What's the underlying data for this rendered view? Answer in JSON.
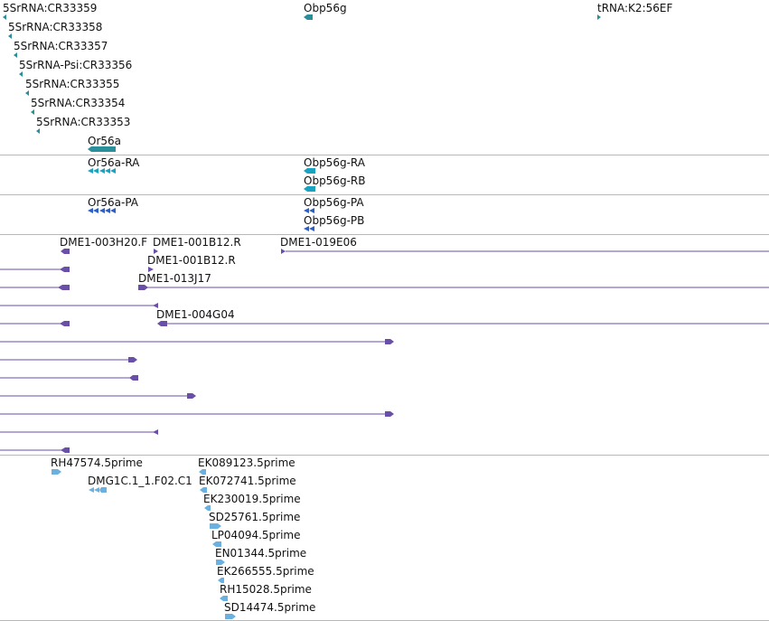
{
  "colors": {
    "gene": "#2a8f9a",
    "transcript_ra": "#1aa3c0",
    "protein": "#2a5fc8",
    "clone": "#6a4fa8",
    "est": "#6ab0e0",
    "divider": "#b8b8b8"
  },
  "tracks": {
    "gene": {
      "features": [
        {
          "label": "5SrRNA:CR33359",
          "strand": "-"
        },
        {
          "label": "5SrRNA:CR33358",
          "strand": "-"
        },
        {
          "label": "5SrRNA:CR33357",
          "strand": "-"
        },
        {
          "label": "5SrRNA-Psi:CR33356",
          "strand": "-"
        },
        {
          "label": "5SrRNA:CR33355",
          "strand": "-"
        },
        {
          "label": "5SrRNA:CR33354",
          "strand": "-"
        },
        {
          "label": "5SrRNA:CR33353",
          "strand": "-"
        },
        {
          "label": "Or56a",
          "strand": "-"
        },
        {
          "label": "Obp56g",
          "strand": "-"
        },
        {
          "label": "tRNA:K2:56EF",
          "strand": "+"
        }
      ]
    },
    "transcripts": {
      "features": [
        {
          "label": "Or56a-RA"
        },
        {
          "label": "Obp56g-RA"
        },
        {
          "label": "Obp56g-RB"
        }
      ]
    },
    "proteins": {
      "features": [
        {
          "label": "Or56a-PA"
        },
        {
          "label": "Obp56g-PA"
        },
        {
          "label": "Obp56g-PB"
        }
      ]
    },
    "clones": {
      "features": [
        {
          "label": "DME1-003H20.F"
        },
        {
          "label": "DME1-001B12.R"
        },
        {
          "label": "DME1-019E06"
        },
        {
          "label": "DME1-001B12.R"
        },
        {
          "label": "DME1-013J17"
        },
        {
          "label": "DME1-004G04"
        }
      ]
    },
    "ests": {
      "features": [
        {
          "label": "RH47574.5prime"
        },
        {
          "label": "DMG1C.1_1.F02.C1"
        },
        {
          "label": "EK089123.5prime"
        },
        {
          "label": "EK072741.5prime"
        },
        {
          "label": "EK230019.5prime"
        },
        {
          "label": "SD25761.5prime"
        },
        {
          "label": "LP04094.5prime"
        },
        {
          "label": "EN01344.5prime"
        },
        {
          "label": "EK266555.5prime"
        },
        {
          "label": "RH15028.5prime"
        },
        {
          "label": "SD14474.5prime"
        }
      ]
    }
  }
}
